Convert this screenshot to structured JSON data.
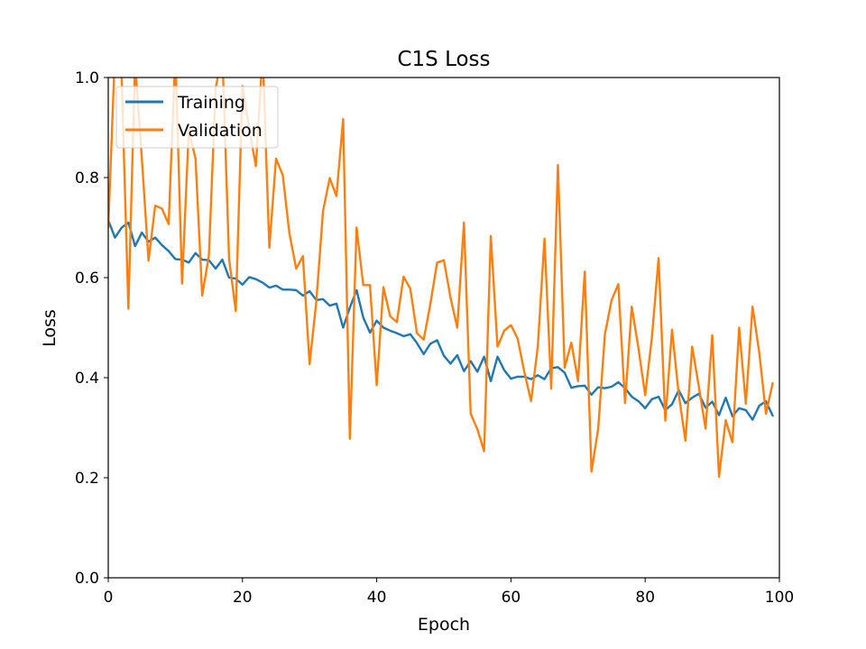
{
  "chart_data": {
    "type": "line",
    "title": "C1S Loss",
    "xlabel": "Epoch",
    "ylabel": "Loss",
    "xlim": [
      0,
      100
    ],
    "ylim": [
      0,
      1
    ],
    "xticks": [
      0,
      20,
      40,
      60,
      80,
      100
    ],
    "yticks": [
      0.0,
      0.2,
      0.4,
      0.6,
      0.8,
      1.0
    ],
    "grid": false,
    "legend_position": "upper-left",
    "x": [
      0,
      1,
      2,
      3,
      4,
      5,
      6,
      7,
      8,
      9,
      10,
      11,
      12,
      13,
      14,
      15,
      16,
      17,
      18,
      19,
      20,
      21,
      22,
      23,
      24,
      25,
      26,
      27,
      28,
      29,
      30,
      31,
      32,
      33,
      34,
      35,
      36,
      37,
      38,
      39,
      40,
      41,
      42,
      43,
      44,
      45,
      46,
      47,
      48,
      49,
      50,
      51,
      52,
      53,
      54,
      55,
      56,
      57,
      58,
      59,
      60,
      61,
      62,
      63,
      64,
      65,
      66,
      67,
      68,
      69,
      70,
      71,
      72,
      73,
      74,
      75,
      76,
      77,
      78,
      79,
      80,
      81,
      82,
      83,
      84,
      85,
      86,
      87,
      88,
      89,
      90,
      91,
      92,
      93,
      94,
      95,
      96,
      97,
      98,
      99
    ],
    "series": [
      {
        "name": "Training",
        "color": "#1f77b4",
        "values": [
          0.715,
          0.68,
          0.7,
          0.71,
          0.663,
          0.69,
          0.672,
          0.68,
          0.665,
          0.653,
          0.637,
          0.636,
          0.63,
          0.649,
          0.636,
          0.635,
          0.618,
          0.636,
          0.6,
          0.598,
          0.586,
          0.601,
          0.597,
          0.59,
          0.58,
          0.584,
          0.576,
          0.576,
          0.575,
          0.564,
          0.573,
          0.555,
          0.557,
          0.544,
          0.548,
          0.5,
          0.54,
          0.575,
          0.52,
          0.49,
          0.514,
          0.5,
          0.494,
          0.489,
          0.483,
          0.487,
          0.469,
          0.447,
          0.468,
          0.475,
          0.444,
          0.428,
          0.445,
          0.413,
          0.433,
          0.412,
          0.442,
          0.393,
          0.442,
          0.415,
          0.398,
          0.402,
          0.402,
          0.397,
          0.405,
          0.397,
          0.419,
          0.421,
          0.41,
          0.38,
          0.383,
          0.384,
          0.366,
          0.381,
          0.379,
          0.382,
          0.391,
          0.379,
          0.362,
          0.353,
          0.339,
          0.357,
          0.362,
          0.335,
          0.347,
          0.375,
          0.349,
          0.36,
          0.368,
          0.34,
          0.352,
          0.325,
          0.36,
          0.323,
          0.339,
          0.335,
          0.316,
          0.344,
          0.353,
          0.324
        ]
      },
      {
        "name": "Validation",
        "color": "#ff7f0e",
        "values": [
          0.7,
          1.05,
          1.0,
          0.538,
          1.03,
          0.84,
          0.634,
          0.744,
          0.738,
          0.707,
          1.05,
          0.588,
          0.895,
          0.838,
          0.564,
          0.645,
          0.978,
          1.05,
          0.638,
          0.533,
          0.983,
          0.898,
          0.823,
          1.05,
          0.66,
          0.838,
          0.805,
          0.688,
          0.618,
          0.643,
          0.427,
          0.552,
          0.733,
          0.799,
          0.763,
          0.917,
          0.278,
          0.7,
          0.585,
          0.585,
          0.385,
          0.581,
          0.523,
          0.511,
          0.602,
          0.578,
          0.489,
          0.476,
          0.548,
          0.63,
          0.635,
          0.56,
          0.5,
          0.71,
          0.328,
          0.297,
          0.253,
          0.683,
          0.462,
          0.494,
          0.505,
          0.478,
          0.411,
          0.353,
          0.462,
          0.678,
          0.378,
          0.825,
          0.42,
          0.47,
          0.393,
          0.612,
          0.212,
          0.298,
          0.487,
          0.555,
          0.587,
          0.349,
          0.542,
          0.459,
          0.365,
          0.48,
          0.639,
          0.314,
          0.496,
          0.367,
          0.274,
          0.462,
          0.382,
          0.298,
          0.485,
          0.202,
          0.315,
          0.271,
          0.5,
          0.348,
          0.542,
          0.45,
          0.328,
          0.389
        ]
      }
    ]
  }
}
